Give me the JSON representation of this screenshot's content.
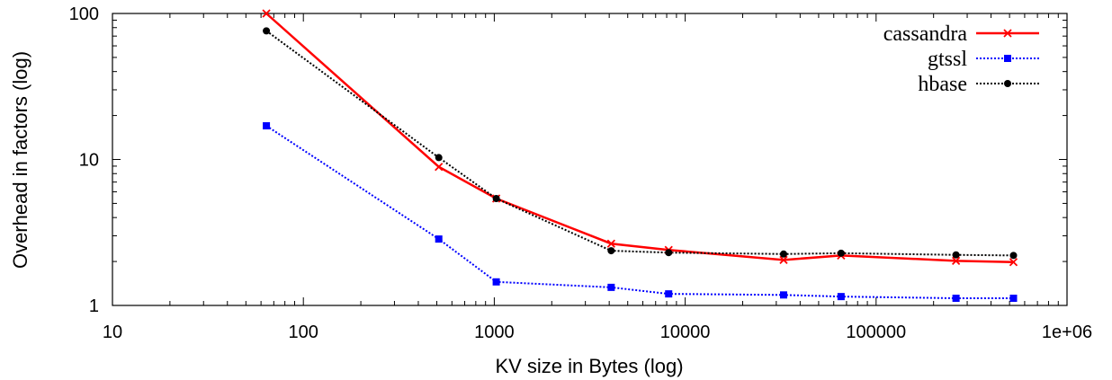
{
  "chart_data": {
    "type": "line",
    "xlabel": "KV size in Bytes (log)",
    "ylabel": "Overhead in factors (log)",
    "x_scale": "log",
    "y_scale": "log",
    "xlim": [
      10,
      1000000
    ],
    "ylim": [
      1,
      100
    ],
    "x_ticks": [
      "10",
      "100",
      "1000",
      "10000",
      "100000",
      "1e+06"
    ],
    "y_ticks": [
      "1",
      "10",
      "100"
    ],
    "legend_position": "top-right",
    "grid": false,
    "series": [
      {
        "name": "cassandra",
        "color": "#ff0000",
        "line_style": "solid",
        "marker": "x",
        "points": [
          [
            64,
            100
          ],
          [
            512,
            8.9
          ],
          [
            1024,
            5.4
          ],
          [
            4096,
            2.65
          ],
          [
            8192,
            2.4
          ],
          [
            32768,
            2.05
          ],
          [
            65536,
            2.2
          ],
          [
            262144,
            2.02
          ],
          [
            524288,
            1.98
          ]
        ]
      },
      {
        "name": "gtssl",
        "color": "#0000ff",
        "line_style": "dotted",
        "marker": "square",
        "points": [
          [
            64,
            17
          ],
          [
            512,
            2.85
          ],
          [
            1024,
            1.45
          ],
          [
            4096,
            1.33
          ],
          [
            8192,
            1.2
          ],
          [
            32768,
            1.18
          ],
          [
            65536,
            1.15
          ],
          [
            262144,
            1.12
          ],
          [
            524288,
            1.12
          ]
        ]
      },
      {
        "name": "hbase",
        "color": "#000000",
        "line_style": "dotted",
        "marker": "circle",
        "points": [
          [
            64,
            76
          ],
          [
            512,
            10.3
          ],
          [
            1024,
            5.4
          ],
          [
            4096,
            2.37
          ],
          [
            8192,
            2.3
          ],
          [
            32768,
            2.25
          ],
          [
            65536,
            2.28
          ],
          [
            262144,
            2.22
          ],
          [
            524288,
            2.2
          ]
        ]
      }
    ]
  }
}
